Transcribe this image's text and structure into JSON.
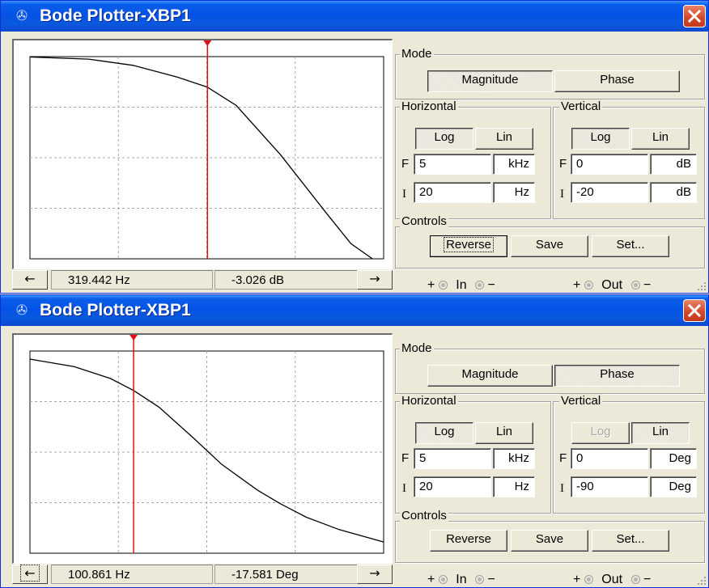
{
  "windows": [
    {
      "title": "Bode Plotter-XBP1",
      "mode": {
        "legend": "Mode",
        "magnitude_label": "Magnitude",
        "phase_label": "Phase",
        "active": "Magnitude"
      },
      "horizontal": {
        "legend": "Horizontal",
        "log_label": "Log",
        "lin_label": "Lin",
        "active": "Log",
        "F_label": "F",
        "F_value": "5",
        "F_unit": "kHz",
        "I_label": "I",
        "I_value": "20",
        "I_unit": "Hz"
      },
      "vertical": {
        "legend": "Vertical",
        "log_label": "Log",
        "lin_label": "Lin",
        "active": "Log",
        "log_disabled": false,
        "F_label": "F",
        "F_value": "0",
        "F_unit": "dB",
        "I_label": "I",
        "I_value": "-20",
        "I_unit": "dB"
      },
      "controls": {
        "legend": "Controls",
        "reverse_label": "Reverse",
        "save_label": "Save",
        "set_label": "Set..."
      },
      "readout": {
        "left_arrow": "←",
        "right_arrow": "→",
        "frequency": "319.442 Hz",
        "value": "-3.026 dB"
      },
      "terminals": {
        "plus": "+",
        "minus": "−",
        "in_label": "In",
        "out_label": "Out"
      },
      "chart_data": {
        "type": "line",
        "title": "",
        "xlabel": "",
        "ylabel": "",
        "x_scale": "log",
        "xlim": [
          20,
          5000
        ],
        "y_unit": "dB",
        "ylim": [
          -20,
          0
        ],
        "grid": true,
        "series": [
          {
            "x": [
              20,
              50,
              100,
              200,
              319.442,
              500,
              1000,
              2000,
              3000,
              4200
            ],
            "y": [
              -0.04,
              -0.25,
              -0.86,
              -2.03,
              -3.026,
              -4.82,
              -9.7,
              -15.3,
              -18.5,
              -20
            ]
          }
        ],
        "cursor": {
          "x": 319.442,
          "y": -3.026
        }
      }
    },
    {
      "title": "Bode Plotter-XBP1",
      "mode": {
        "legend": "Mode",
        "magnitude_label": "Magnitude",
        "phase_label": "Phase",
        "active": "Phase"
      },
      "horizontal": {
        "legend": "Horizontal",
        "log_label": "Log",
        "lin_label": "Lin",
        "active": "Log",
        "F_label": "F",
        "F_value": "5",
        "F_unit": "kHz",
        "I_label": "I",
        "I_value": "20",
        "I_unit": "Hz"
      },
      "vertical": {
        "legend": "Vertical",
        "log_label": "Log",
        "lin_label": "Lin",
        "active": "Lin",
        "log_disabled": true,
        "F_label": "F",
        "F_value": "0",
        "F_unit": "Deg",
        "I_label": "I",
        "I_value": "-90",
        "I_unit": "Deg"
      },
      "controls": {
        "legend": "Controls",
        "reverse_label": "Reverse",
        "save_label": "Save",
        "set_label": "Set..."
      },
      "readout": {
        "left_arrow": "←",
        "right_arrow": "→",
        "frequency": "100.861 Hz",
        "value": "-17.581 Deg"
      },
      "terminals": {
        "plus": "+",
        "minus": "−",
        "in_label": "In",
        "out_label": "Out"
      },
      "chart_data": {
        "type": "line",
        "title": "",
        "xlabel": "",
        "ylabel": "",
        "x_scale": "log",
        "xlim": [
          20,
          5000
        ],
        "y_unit": "Deg",
        "ylim": [
          -90,
          0
        ],
        "grid": true,
        "series": [
          {
            "x": [
              20,
              40,
              70,
              100.861,
              150,
              250,
              400,
              700,
              1000,
              1500,
              2500,
              5000
            ],
            "y": [
              -3.6,
              -7.0,
              -12.2,
              -17.581,
              -25.0,
              -38.0,
              -50.5,
              -62.0,
              -68.0,
              -74.0,
              -79.5,
              -85.0
            ]
          }
        ],
        "cursor": {
          "x": 100.861,
          "y": -17.581
        }
      }
    }
  ]
}
